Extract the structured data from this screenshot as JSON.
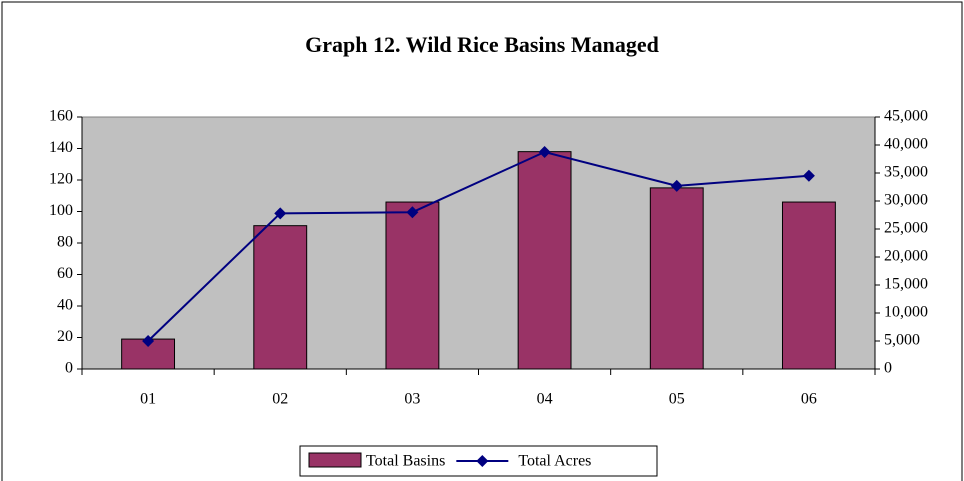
{
  "chart_data": {
    "type": "bar",
    "title": "Graph 12.  Wild Rice Basins Managed",
    "categories": [
      "01",
      "02",
      "03",
      "04",
      "05",
      "06"
    ],
    "series": [
      {
        "name": "Total Basins",
        "type": "bar",
        "color": "#993366",
        "values": [
          19,
          91,
          106,
          138,
          115,
          106
        ]
      },
      {
        "name": "Total Acres",
        "type": "line",
        "axis": "y2",
        "color": "#000080",
        "values": [
          5000,
          27800,
          28000,
          38750,
          32700,
          34500
        ]
      }
    ],
    "ylim": [
      0,
      160
    ],
    "yticks": [
      0,
      20,
      40,
      60,
      80,
      100,
      120,
      140,
      160
    ],
    "y2lim": [
      0,
      45000
    ],
    "y2ticks": [
      0,
      {
        "value": 5000,
        "label": "5,000"
      },
      {
        "value": 10000,
        "label": "10,000"
      },
      {
        "value": 15000,
        "label": "15,000"
      },
      {
        "value": 20000,
        "label": "20,000"
      },
      {
        "value": 25000,
        "label": "25,000"
      },
      {
        "value": 30000,
        "label": "30,000"
      },
      {
        "value": 35000,
        "label": "35,000"
      },
      {
        "value": 40000,
        "label": "40,000"
      },
      {
        "value": 45000,
        "label": "45,000"
      }
    ],
    "legend": "bottom"
  }
}
